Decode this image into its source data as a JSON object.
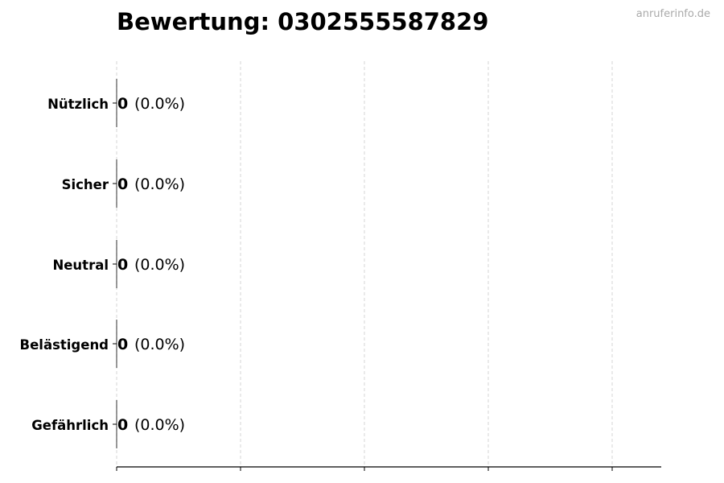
{
  "chart_data": {
    "type": "bar",
    "orientation": "horizontal",
    "title": "Bewertung: 0302555587829",
    "watermark": "anruferinfo.de",
    "categories": [
      "Nützlich",
      "Sicher",
      "Neutral",
      "Belästigend",
      "Gefährlich"
    ],
    "values": [
      0,
      0,
      0,
      0,
      0
    ],
    "labels": [
      "0",
      "0",
      "0",
      "0",
      "0"
    ],
    "percent_labels": [
      "(0.0%)",
      "(0.0%)",
      "(0.0%)",
      "(0.0%)",
      "(0.0%)"
    ],
    "xlabel": "",
    "ylabel": "",
    "grid": "x, dashed",
    "x_tick_labels_shown": false,
    "bar_color": "#000000"
  }
}
